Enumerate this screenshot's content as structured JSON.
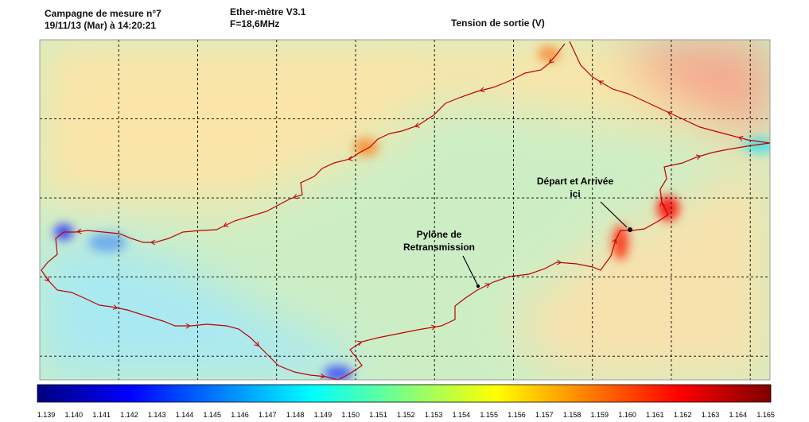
{
  "header": {
    "campaign": "Campagne de mesure n°7",
    "datetime": "19/11/13 (Mar) à 14:20:21",
    "device": "Ether-mètre V3.1",
    "frequency": "F=18,6MHz",
    "measure_title": "Tension de sortie (V)"
  },
  "chart_data": {
    "type": "heatmap",
    "title": "Tension de sortie (V)",
    "unit": "V",
    "value_range": [
      1.139,
      1.1655
    ],
    "grid": true,
    "colormap": [
      "#00007f",
      "#0000ff",
      "#007fff",
      "#00ffff",
      "#7fff7f",
      "#ffff00",
      "#ff7f00",
      "#ff0000",
      "#7f0000"
    ],
    "colorbar_ticks": [
      "1.139",
      "1.140",
      "1.141",
      "1.142",
      "1.143",
      "1.144",
      "1.145",
      "1.146",
      "1.147",
      "1.148",
      "1.149",
      "1.150",
      "1.151",
      "1.152",
      "1.153",
      "1.154",
      "1.155",
      "1.156",
      "1.157",
      "1.158",
      "1.159",
      "1.160",
      "1.161",
      "1.162",
      "1.163",
      "1.164",
      "1.165"
    ],
    "background_colors": {
      "north_inland": "#fbe5a8",
      "north_east": "#f5a78d",
      "central": "#cdeec5",
      "south_west": "#a9e9f1",
      "east": "#f7e2ad"
    },
    "route_color": "#c00000",
    "annotations": [
      {
        "id": "start",
        "lines": [
          "Départ et Arrivée",
          "ici"
        ]
      },
      {
        "id": "pylon",
        "lines": [
          "Pylône de",
          "Retransmission"
        ]
      }
    ]
  }
}
